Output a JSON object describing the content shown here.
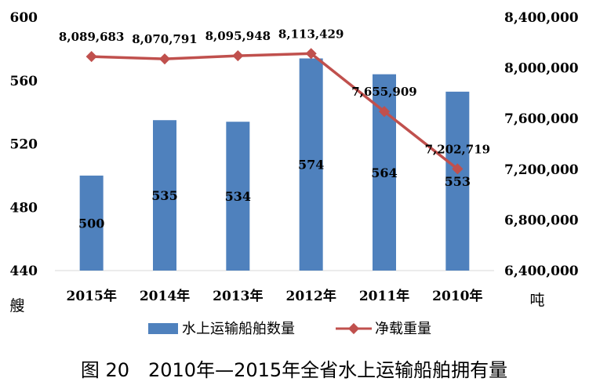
{
  "chart_data": {
    "type": "bar",
    "categories": [
      "2015年",
      "2014年",
      "2013年",
      "2012年",
      "2011年",
      "2010年"
    ],
    "series": [
      {
        "name": "水上运输船舶数量",
        "type": "bar",
        "axis": "left",
        "values": [
          500,
          535,
          534,
          574,
          564,
          553
        ],
        "labels": [
          "500",
          "535",
          "534",
          "574",
          "564",
          "553"
        ],
        "color": "#4F81BD"
      },
      {
        "name": "净载重量",
        "type": "line",
        "axis": "right",
        "values": [
          8089683,
          8070791,
          8095948,
          8113429,
          7655909,
          7202719
        ],
        "labels": [
          "8,089,683",
          "8,070,791",
          "8,095,948",
          "8,113,429",
          "7,655,909",
          "7,202,719"
        ],
        "color": "#C0504D"
      }
    ],
    "y_left": {
      "min": 440,
      "max": 600,
      "ticks": [
        "440",
        "480",
        "520",
        "560",
        "600"
      ],
      "unit": "艘"
    },
    "y_right": {
      "min": 6400000,
      "max": 8400000,
      "ticks": [
        "6,400,000",
        "6,800,000",
        "7,200,000",
        "7,600,000",
        "8,000,000",
        "8,400,000"
      ],
      "unit": "吨"
    },
    "grid": false,
    "legend_position": "bottom",
    "caption": "图 20　2010年—2015年全省水上运输船舶拥有量"
  }
}
